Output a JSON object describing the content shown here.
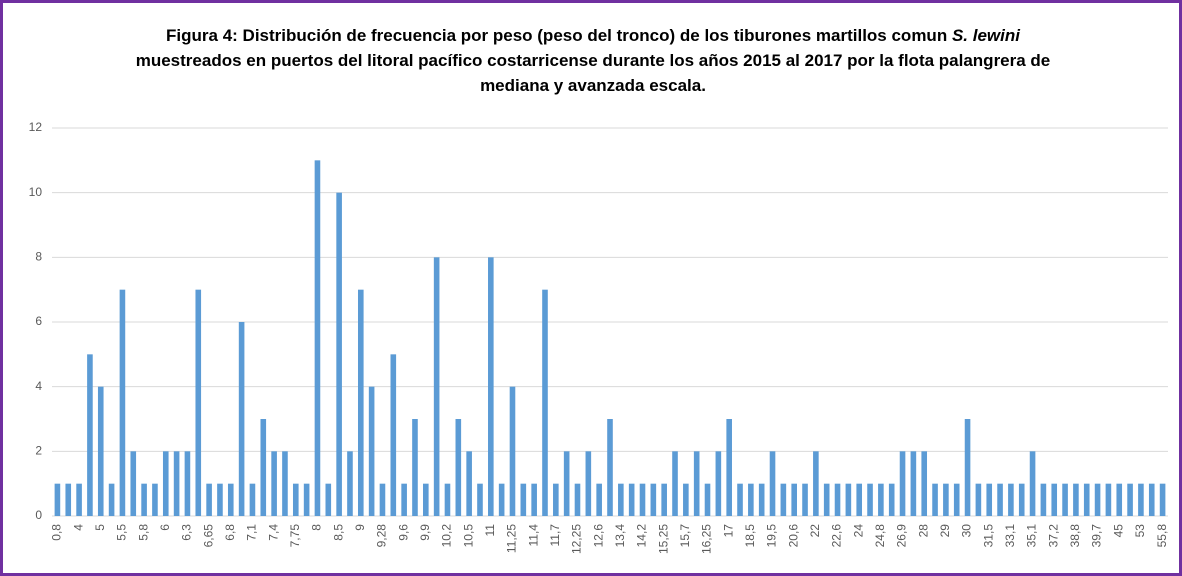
{
  "chart_data": {
    "type": "bar",
    "title": [
      "Figura 4: Distribución de frecuencia por peso (peso del tronco) de los tiburones martillos comun ",
      "S. lewini",
      " muestreados en puertos del litoral pacífico costarricense durante los años 2015 al 2017 por la flota palangrera de mediana y avanzada escala."
    ],
    "categories": [
      "0,8",
      null,
      "4",
      null,
      "5",
      null,
      "5,5",
      null,
      "5,8",
      null,
      "6",
      null,
      "6,3",
      null,
      "6,65",
      null,
      "6,8",
      null,
      "7,1",
      null,
      "7,4",
      null,
      "7,75",
      null,
      "8",
      null,
      "8,5",
      null,
      "9",
      null,
      "9,28",
      null,
      "9,6",
      null,
      "9,9",
      null,
      "10,2",
      null,
      "10,5",
      null,
      "11",
      null,
      "11,25",
      null,
      "11,4",
      null,
      "11,7",
      null,
      "12,25",
      null,
      "12,6",
      null,
      "13,4",
      null,
      "14,2",
      null,
      "15,25",
      null,
      "15,7",
      null,
      "16,25",
      null,
      "17",
      null,
      "18,5",
      null,
      "19,5",
      null,
      "20,6",
      null,
      "22",
      null,
      "22,6",
      null,
      "24",
      null,
      "24,8",
      null,
      "26,9",
      null,
      "28",
      null,
      "29",
      null,
      "30",
      null,
      "31,5",
      null,
      "33,1",
      null,
      "35,1",
      null,
      "37,2",
      null,
      "38,8",
      null,
      "39,7",
      null,
      "45",
      null,
      "53",
      null,
      "55,8"
    ],
    "values": [
      1,
      1,
      1,
      5,
      4,
      1,
      7,
      2,
      1,
      1,
      2,
      2,
      2,
      7,
      1,
      1,
      1,
      6,
      1,
      3,
      2,
      2,
      1,
      1,
      11,
      1,
      10,
      2,
      7,
      4,
      1,
      5,
      1,
      3,
      1,
      8,
      1,
      3,
      2,
      1,
      8,
      1,
      4,
      1,
      1,
      7,
      1,
      2,
      1,
      2,
      1,
      3,
      1,
      1,
      1,
      1,
      1,
      2,
      1,
      2,
      1,
      2,
      3,
      1,
      1,
      1,
      2,
      1,
      1,
      1,
      2,
      1,
      1,
      1,
      1,
      1,
      1,
      1,
      2,
      2,
      2,
      1,
      1,
      1,
      3,
      1,
      1,
      1,
      1,
      1,
      2,
      1,
      1,
      1,
      1,
      1,
      1,
      1,
      1,
      1,
      1,
      1,
      1
    ],
    "color": "#5b9bd5",
    "ylim": [
      0,
      12
    ],
    "yticks": [
      0,
      2,
      4,
      6,
      8,
      10,
      12
    ],
    "grid": true
  }
}
